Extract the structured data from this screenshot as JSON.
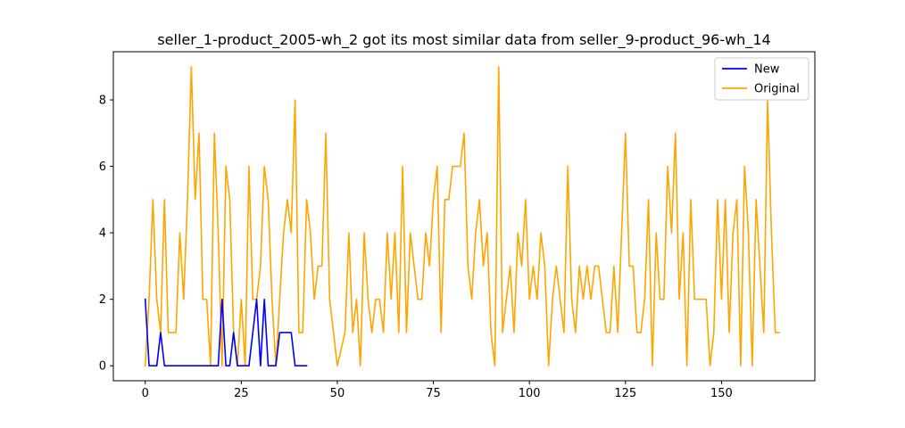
{
  "chart_data": {
    "type": "line",
    "title": "seller_1-product_2005-wh_2 got its most similar data from seller_9-product_96-wh_14",
    "xlabel": "",
    "ylabel": "",
    "xlim": [
      -8.3,
      174.3
    ],
    "ylim": [
      -0.45,
      9.45
    ],
    "xticks": [
      0,
      25,
      50,
      75,
      100,
      125,
      150
    ],
    "yticks": [
      0,
      2,
      4,
      6,
      8
    ],
    "grid": false,
    "legend_position": "upper right",
    "series": [
      {
        "name": "New",
        "color": "#0000ff",
        "values": [
          2,
          0,
          0,
          0,
          1,
          0,
          0,
          0,
          0,
          0,
          0,
          0,
          0,
          0,
          0,
          0,
          0,
          0,
          0,
          0,
          2,
          0,
          0,
          1,
          0,
          0,
          0,
          0,
          1,
          2,
          0,
          2,
          0,
          0,
          0,
          1,
          1,
          1,
          1,
          0,
          0,
          0,
          0
        ]
      },
      {
        "name": "Original",
        "color": "#ffa500",
        "values": [
          0,
          2,
          5,
          2,
          1,
          5,
          1,
          1,
          1,
          4,
          2,
          5,
          9,
          5,
          7,
          2,
          2,
          0,
          7,
          4,
          0,
          6,
          5,
          1,
          0,
          2,
          0,
          6,
          2,
          2,
          3,
          6,
          5,
          2,
          0,
          2,
          4,
          5,
          4,
          8,
          1,
          1,
          5,
          4,
          2,
          3,
          3,
          7,
          2,
          1,
          0,
          0.5,
          1,
          4,
          1,
          2,
          0,
          4,
          2,
          1,
          2,
          2,
          1,
          4,
          2,
          4,
          1,
          6,
          1,
          4,
          3,
          2,
          2,
          4,
          3,
          5,
          6,
          1,
          5,
          5,
          6,
          6,
          6,
          7,
          3,
          2,
          4,
          5,
          3,
          4,
          1,
          0,
          9,
          1,
          2,
          3,
          1,
          4,
          3,
          5,
          2,
          3,
          2,
          4,
          3,
          0,
          2,
          3,
          2,
          1,
          6,
          2,
          1,
          3,
          2,
          3,
          2,
          3,
          3,
          2,
          1,
          1,
          3,
          1,
          4,
          7,
          3,
          3,
          1,
          1,
          2,
          5,
          0,
          4,
          2,
          2,
          6,
          4,
          7,
          2,
          4,
          0,
          5,
          2,
          2,
          2,
          2,
          0,
          1,
          5,
          2,
          5,
          1,
          4,
          5,
          0,
          6,
          4,
          0,
          5,
          3,
          1,
          8,
          4,
          1,
          1
        ]
      }
    ]
  }
}
